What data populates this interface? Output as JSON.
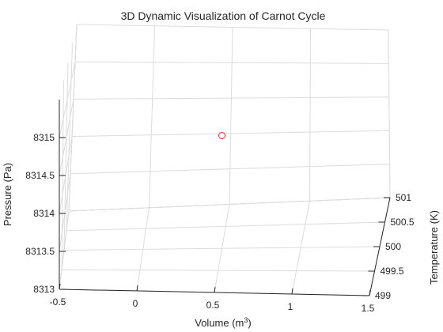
{
  "chart_data": {
    "type": "scatter",
    "title": "3D Dynamic Visualization of Carnot Cycle",
    "xlabel": "Volume (m",
    "xlabel_sup": "3",
    "xlabel_close": ")",
    "ylabel": "Temperature (K)",
    "zlabel": "Pressure (Pa)",
    "xlim": [
      -0.5,
      1.5
    ],
    "ylim": [
      499,
      501
    ],
    "zlim": [
      8313,
      8315.5
    ],
    "x_ticks": [
      "-0.5",
      "0",
      "0.5",
      "1",
      "1.5"
    ],
    "y_ticks": [
      "499",
      "499.5",
      "500",
      "500.5",
      "501"
    ],
    "z_ticks": [
      "8313",
      "8313.5",
      "8314",
      "8314.5",
      "8315"
    ],
    "grid": true,
    "marker": {
      "shape": "circle",
      "color": "#e03030",
      "filled": false
    },
    "points": [
      {
        "x": 0.5,
        "y": 500,
        "z": 8314.5
      }
    ]
  }
}
